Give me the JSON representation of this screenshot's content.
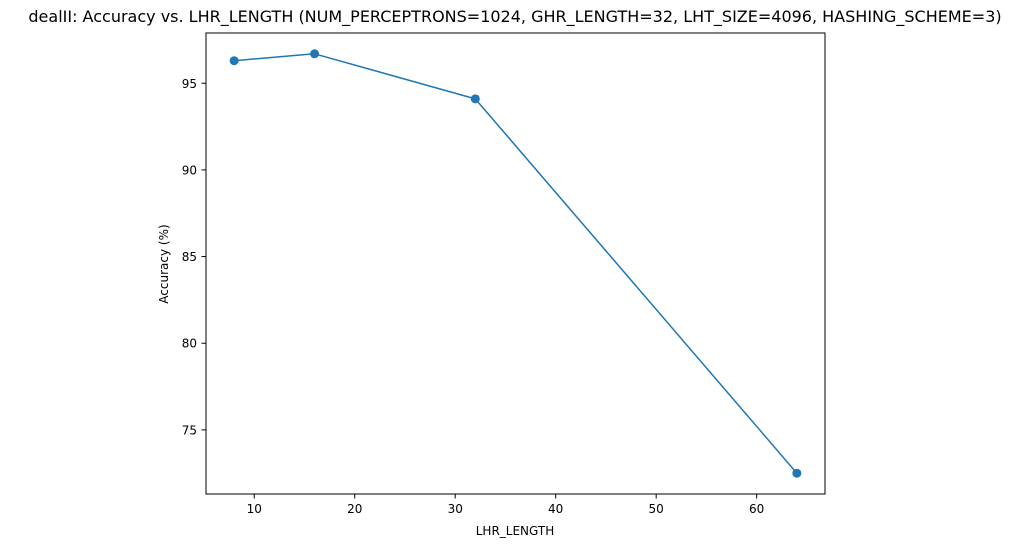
{
  "chart_data": {
    "type": "line",
    "title": "dealII: Accuracy vs. LHR_LENGTH (NUM_PERCEPTRONS=1024, GHR_LENGTH=32, LHT_SIZE=4096, HASHING_SCHEME=3)",
    "xlabel": "LHR_LENGTH",
    "ylabel": "Accuracy (%)",
    "x": [
      8,
      16,
      32,
      64
    ],
    "y": [
      96.3,
      96.7,
      94.1,
      72.5
    ],
    "xlim": [
      5.2,
      66.8
    ],
    "ylim": [
      71.3,
      97.9
    ],
    "xticks": [
      10,
      20,
      30,
      40,
      50,
      60
    ],
    "yticks": [
      75,
      80,
      85,
      90,
      95
    ],
    "grid": false,
    "marker": "circle",
    "colors": {
      "line": "#1f77b4",
      "marker": "#1f77b4",
      "axes": "#000000"
    }
  }
}
